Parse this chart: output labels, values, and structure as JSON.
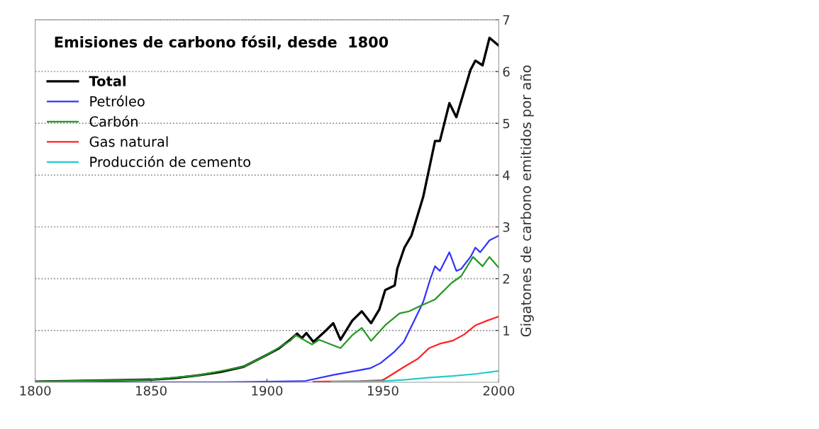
{
  "chart_data": {
    "type": "line",
    "title": "Emisiones de carbono fósil, desde  1800",
    "ylabel": "Gigatones de carbono emitidos por año",
    "xlim": [
      1800,
      2000
    ],
    "xticks": [
      1800,
      1850,
      1900,
      1950,
      2000
    ],
    "ylim": [
      0,
      7
    ],
    "yticks": [
      1,
      2,
      3,
      4,
      5,
      6,
      7
    ],
    "grid": "y",
    "legend": "top left",
    "series": [
      {
        "name": "Total",
        "color": "#000000",
        "x": [
          1800,
          1850,
          1860,
          1870,
          1880,
          1890,
          1900,
          1905,
          1910,
          1913,
          1915,
          1917,
          1920,
          1925,
          1928.6,
          1931.7,
          1936.8,
          1940.9,
          1944.9,
          1948.5,
          1951,
          1955.1,
          1956.2,
          1959.3,
          1962.3,
          1967.4,
          1972.5,
          1974.6,
          1978.7,
          1981.7,
          1987.8,
          1989.9,
          1993,
          1996,
          2000
        ],
        "values": [
          0.01,
          0.05,
          0.08,
          0.13,
          0.2,
          0.3,
          0.53,
          0.65,
          0.82,
          0.94,
          0.85,
          0.95,
          0.78,
          0.98,
          1.14,
          0.82,
          1.19,
          1.37,
          1.14,
          1.41,
          1.78,
          1.87,
          2.19,
          2.6,
          2.83,
          3.58,
          4.66,
          4.66,
          5.39,
          5.12,
          6.03,
          6.21,
          6.12,
          6.65,
          6.5
        ]
      },
      {
        "name": "Petróleo",
        "color": "#3333ff",
        "x": [
          1800,
          1880,
          1900,
          1916,
          1928.6,
          1944.5,
          1949,
          1955,
          1959,
          1963,
          1967.4,
          1970.5,
          1972.5,
          1974.6,
          1978.7,
          1981.7,
          1983.8,
          1987.8,
          1989.9,
          1992,
          1996,
          2000
        ],
        "values": [
          0,
          0,
          0.01,
          0.02,
          0.14,
          0.27,
          0.37,
          0.59,
          0.78,
          1.14,
          1.55,
          2.0,
          2.24,
          2.15,
          2.51,
          2.15,
          2.19,
          2.42,
          2.6,
          2.51,
          2.74,
          2.83
        ]
      },
      {
        "name": "Carbón",
        "color": "#229922",
        "x": [
          1800,
          1850,
          1870,
          1890,
          1900,
          1910,
          1912.3,
          1919.4,
          1922.5,
          1931.7,
          1936.8,
          1940.9,
          1944.9,
          1951,
          1957.2,
          1961.3,
          1965.4,
          1972.5,
          1979.7,
          1983.8,
          1988.9,
          1993,
          1996,
          2000
        ],
        "values": [
          0.01,
          0.05,
          0.13,
          0.3,
          0.53,
          0.8,
          0.91,
          0.73,
          0.82,
          0.66,
          0.91,
          1.05,
          0.8,
          1.1,
          1.33,
          1.37,
          1.46,
          1.6,
          1.92,
          2.05,
          2.42,
          2.24,
          2.42,
          2.21
        ]
      },
      {
        "name": "Gas natural",
        "color": "#ff2222",
        "x": [
          1920,
          1940,
          1950,
          1955,
          1960,
          1965,
          1970,
          1975,
          1980,
          1985,
          1990,
          1995,
          2000
        ],
        "values": [
          0.01,
          0.02,
          0.04,
          0.18,
          0.32,
          0.45,
          0.66,
          0.75,
          0.8,
          0.92,
          1.1,
          1.19,
          1.27
        ]
      },
      {
        "name": "Producción de cemento",
        "color": "#22cccc",
        "x": [
          1928,
          1950,
          1960,
          1970,
          1980,
          1990,
          2000
        ],
        "values": [
          0.01,
          0.02,
          0.05,
          0.09,
          0.12,
          0.16,
          0.22
        ]
      }
    ]
  }
}
